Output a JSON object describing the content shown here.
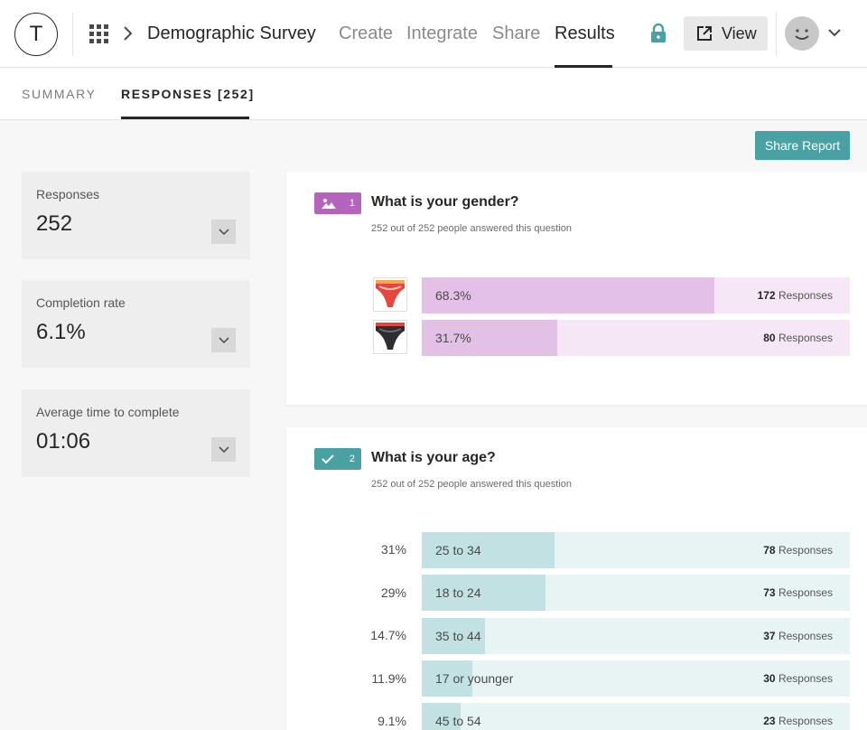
{
  "header": {
    "logo_letter": "T",
    "survey_title": "Demographic Survey",
    "nav": [
      "Create",
      "Integrate",
      "Share",
      "Results"
    ],
    "view_label": "View"
  },
  "subtabs": {
    "summary": "SUMMARY",
    "responses": "RESPONSES [252]"
  },
  "share_report": "Share Report",
  "stats": [
    {
      "label": "Responses",
      "value": "252"
    },
    {
      "label": "Completion rate",
      "value": "6.1%"
    },
    {
      "label": "Average time to complete",
      "value": "01:06"
    }
  ],
  "questions": [
    {
      "number": "1",
      "title": "What is your gender?",
      "subtitle": "252 out of 252 people answered this question",
      "color": "#b564bd",
      "answers": [
        {
          "label": "68.3%",
          "fraction": 0.683,
          "count": "172",
          "unit": "Responses",
          "thumb": "red-underwear"
        },
        {
          "label": "31.7%",
          "fraction": 0.317,
          "count": "80",
          "unit": "Responses",
          "thumb": "black-underwear"
        }
      ]
    },
    {
      "number": "2",
      "title": "What is your age?",
      "subtitle": "252 out of 252 people answered this question",
      "color": "#4aa1a3",
      "answers": [
        {
          "pct": "31%",
          "label": "25 to 34",
          "fraction": 0.31,
          "count": "78",
          "unit": "Responses"
        },
        {
          "pct": "29%",
          "label": "18 to 24",
          "fraction": 0.29,
          "count": "73",
          "unit": "Responses"
        },
        {
          "pct": "14.7%",
          "label": "35 to 44",
          "fraction": 0.147,
          "count": "37",
          "unit": "Responses"
        },
        {
          "pct": "11.9%",
          "label": "17 or younger",
          "fraction": 0.119,
          "count": "30",
          "unit": "Responses"
        },
        {
          "pct": "9.1%",
          "label": "45 to 54",
          "fraction": 0.091,
          "count": "23",
          "unit": "Responses"
        }
      ]
    }
  ],
  "colors": {
    "gender_fill": "#e3c1e6",
    "gender_track": "#f5e7f6",
    "age_fill": "#c2e1e2",
    "age_track": "#e8f4f4",
    "accent": "#4aa1a3"
  }
}
